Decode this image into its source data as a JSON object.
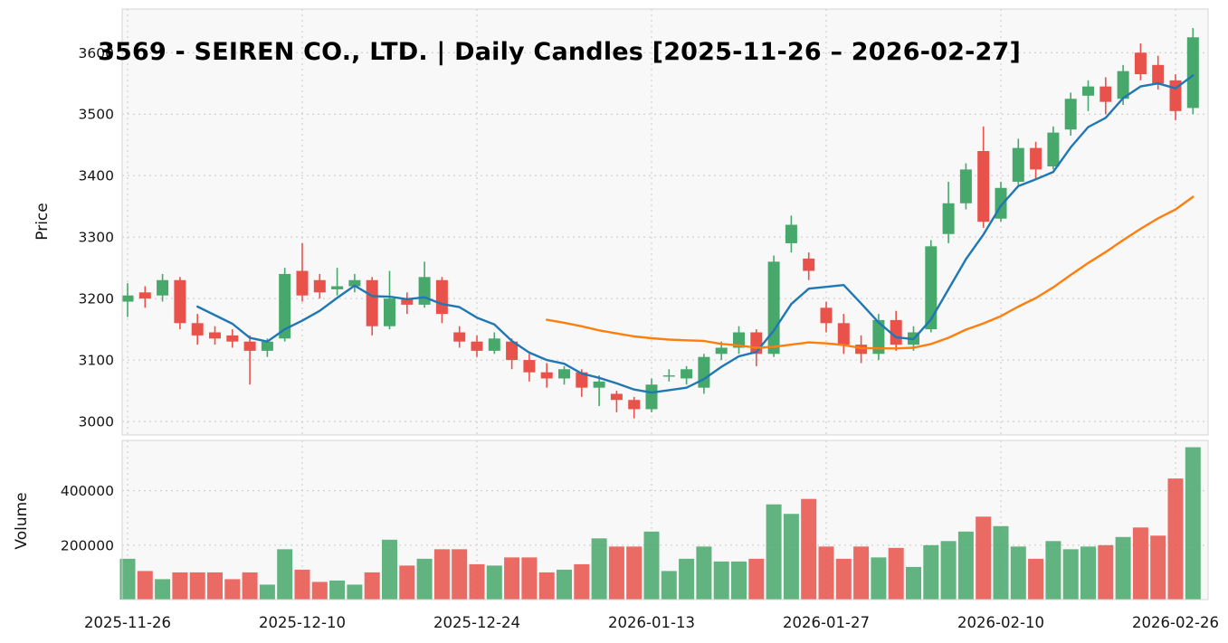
{
  "title": "3569 - SEIREN CO., LTD. | Daily Candles [2025-11-26 – 2026-02-27]",
  "colors": {
    "up": "#47a86b",
    "down": "#e8524b",
    "sma_fast": "#1f77b4",
    "sma_slow": "#ff7f0e",
    "grid": "#c9c9c9",
    "panel_bg": "#f8f8f8",
    "panel_border": "#d4d4d4",
    "text": "#151515"
  },
  "chart_data": {
    "type": "candlestick",
    "title": "3569 - SEIREN CO., LTD. | Daily Candles [2025-11-26 – 2026-02-27]",
    "ylabel": "Price",
    "ylabel_volume": "Volume",
    "grid": true,
    "price_range": [
      2978,
      3671
    ],
    "volume_range": [
      0,
      585000
    ],
    "price_ticks": [
      3000,
      3100,
      3200,
      3300,
      3400,
      3500,
      3600
    ],
    "volume_ticks": [
      200000,
      400000
    ],
    "x_tick_labels": [
      {
        "index": 0,
        "label": "2025-11-26"
      },
      {
        "index": 10,
        "label": "2025-12-10"
      },
      {
        "index": 20,
        "label": "2025-12-24"
      },
      {
        "index": 30,
        "label": "2026-01-13"
      },
      {
        "index": 40,
        "label": "2026-01-27"
      },
      {
        "index": 50,
        "label": "2026-02-10"
      },
      {
        "index": 60,
        "label": "2026-02-26"
      }
    ],
    "moving_averages": [
      {
        "name": "SMA(5)",
        "window": 5,
        "color": "#1f77b4"
      },
      {
        "name": "SMA(25)",
        "window": 25,
        "color": "#ff7f0e"
      }
    ],
    "candles": [
      {
        "date": "2025-11-26",
        "open": 3195,
        "high": 3225,
        "low": 3170,
        "close": 3205,
        "volume": 150000
      },
      {
        "date": "2025-11-27",
        "open": 3210,
        "high": 3220,
        "low": 3185,
        "close": 3200,
        "volume": 105000
      },
      {
        "date": "2025-11-28",
        "open": 3205,
        "high": 3240,
        "low": 3195,
        "close": 3230,
        "volume": 75000
      },
      {
        "date": "2025-12-01",
        "open": 3230,
        "high": 3235,
        "low": 3150,
        "close": 3160,
        "volume": 100000
      },
      {
        "date": "2025-12-02",
        "open": 3160,
        "high": 3175,
        "low": 3125,
        "close": 3140,
        "volume": 100000
      },
      {
        "date": "2025-12-03",
        "open": 3145,
        "high": 3155,
        "low": 3125,
        "close": 3135,
        "volume": 100000
      },
      {
        "date": "2025-12-04",
        "open": 3140,
        "high": 3150,
        "low": 3120,
        "close": 3130,
        "volume": 75000
      },
      {
        "date": "2025-12-05",
        "open": 3130,
        "high": 3140,
        "low": 3060,
        "close": 3115,
        "volume": 100000
      },
      {
        "date": "2025-12-08",
        "open": 3115,
        "high": 3135,
        "low": 3105,
        "close": 3130,
        "volume": 55000
      },
      {
        "date": "2025-12-09",
        "open": 3135,
        "high": 3250,
        "low": 3130,
        "close": 3240,
        "volume": 185000
      },
      {
        "date": "2025-12-10",
        "open": 3245,
        "high": 3290,
        "low": 3195,
        "close": 3205,
        "volume": 110000
      },
      {
        "date": "2025-12-11",
        "open": 3230,
        "high": 3240,
        "low": 3200,
        "close": 3210,
        "volume": 65000
      },
      {
        "date": "2025-12-12",
        "open": 3215,
        "high": 3250,
        "low": 3205,
        "close": 3220,
        "volume": 70000
      },
      {
        "date": "2025-12-15",
        "open": 3220,
        "high": 3240,
        "low": 3210,
        "close": 3230,
        "volume": 55000
      },
      {
        "date": "2025-12-16",
        "open": 3230,
        "high": 3235,
        "low": 3140,
        "close": 3155,
        "volume": 100000
      },
      {
        "date": "2025-12-17",
        "open": 3155,
        "high": 3245,
        "low": 3150,
        "close": 3200,
        "volume": 220000
      },
      {
        "date": "2025-12-18",
        "open": 3200,
        "high": 3210,
        "low": 3175,
        "close": 3190,
        "volume": 125000
      },
      {
        "date": "2025-12-19",
        "open": 3190,
        "high": 3260,
        "low": 3185,
        "close": 3235,
        "volume": 150000
      },
      {
        "date": "2025-12-22",
        "open": 3230,
        "high": 3235,
        "low": 3160,
        "close": 3175,
        "volume": 185000
      },
      {
        "date": "2025-12-23",
        "open": 3145,
        "high": 3155,
        "low": 3120,
        "close": 3130,
        "volume": 185000
      },
      {
        "date": "2025-12-24",
        "open": 3130,
        "high": 3140,
        "low": 3105,
        "close": 3115,
        "volume": 130000
      },
      {
        "date": "2025-12-25",
        "open": 3115,
        "high": 3145,
        "low": 3110,
        "close": 3135,
        "volume": 125000
      },
      {
        "date": "2025-12-26",
        "open": 3130,
        "high": 3135,
        "low": 3085,
        "close": 3100,
        "volume": 155000
      },
      {
        "date": "2025-12-29",
        "open": 3100,
        "high": 3110,
        "low": 3065,
        "close": 3080,
        "volume": 155000
      },
      {
        "date": "2025-12-30",
        "open": 3080,
        "high": 3095,
        "low": 3055,
        "close": 3070,
        "volume": 100000
      },
      {
        "date": "2026-01-05",
        "open": 3070,
        "high": 3090,
        "low": 3060,
        "close": 3085,
        "volume": 110000
      },
      {
        "date": "2026-01-06",
        "open": 3080,
        "high": 3085,
        "low": 3040,
        "close": 3055,
        "volume": 130000
      },
      {
        "date": "2026-01-07",
        "open": 3055,
        "high": 3075,
        "low": 3025,
        "close": 3065,
        "volume": 225000
      },
      {
        "date": "2026-01-08",
        "open": 3045,
        "high": 3050,
        "low": 3015,
        "close": 3035,
        "volume": 195000
      },
      {
        "date": "2026-01-09",
        "open": 3035,
        "high": 3040,
        "low": 3005,
        "close": 3020,
        "volume": 195000
      },
      {
        "date": "2026-01-13",
        "open": 3020,
        "high": 3070,
        "low": 3015,
        "close": 3060,
        "volume": 250000
      },
      {
        "date": "2026-01-14",
        "open": 3075,
        "high": 3085,
        "low": 3065,
        "close": 3075,
        "volume": 105000
      },
      {
        "date": "2026-01-15",
        "open": 3070,
        "high": 3090,
        "low": 3060,
        "close": 3085,
        "volume": 150000
      },
      {
        "date": "2026-01-16",
        "open": 3055,
        "high": 3110,
        "low": 3045,
        "close": 3105,
        "volume": 195000
      },
      {
        "date": "2026-01-19",
        "open": 3110,
        "high": 3130,
        "low": 3100,
        "close": 3120,
        "volume": 140000
      },
      {
        "date": "2026-01-20",
        "open": 3120,
        "high": 3155,
        "low": 3110,
        "close": 3145,
        "volume": 140000
      },
      {
        "date": "2026-01-21",
        "open": 3145,
        "high": 3150,
        "low": 3090,
        "close": 3110,
        "volume": 150000
      },
      {
        "date": "2026-01-22",
        "open": 3110,
        "high": 3270,
        "low": 3105,
        "close": 3260,
        "volume": 350000
      },
      {
        "date": "2026-01-23",
        "open": 3290,
        "high": 3335,
        "low": 3275,
        "close": 3320,
        "volume": 315000
      },
      {
        "date": "2026-01-26",
        "open": 3265,
        "high": 3275,
        "low": 3230,
        "close": 3245,
        "volume": 370000
      },
      {
        "date": "2026-01-27",
        "open": 3185,
        "high": 3195,
        "low": 3145,
        "close": 3160,
        "volume": 195000
      },
      {
        "date": "2026-01-28",
        "open": 3160,
        "high": 3175,
        "low": 3110,
        "close": 3125,
        "volume": 150000
      },
      {
        "date": "2026-01-29",
        "open": 3125,
        "high": 3140,
        "low": 3095,
        "close": 3110,
        "volume": 195000
      },
      {
        "date": "2026-01-30",
        "open": 3110,
        "high": 3175,
        "low": 3100,
        "close": 3165,
        "volume": 155000
      },
      {
        "date": "2026-02-02",
        "open": 3165,
        "high": 3180,
        "low": 3115,
        "close": 3125,
        "volume": 190000
      },
      {
        "date": "2026-02-03",
        "open": 3125,
        "high": 3155,
        "low": 3115,
        "close": 3145,
        "volume": 120000
      },
      {
        "date": "2026-02-04",
        "open": 3150,
        "high": 3295,
        "low": 3145,
        "close": 3285,
        "volume": 200000
      },
      {
        "date": "2026-02-05",
        "open": 3305,
        "high": 3390,
        "low": 3290,
        "close": 3355,
        "volume": 215000
      },
      {
        "date": "2026-02-06",
        "open": 3355,
        "high": 3420,
        "low": 3345,
        "close": 3410,
        "volume": 250000
      },
      {
        "date": "2026-02-09",
        "open": 3440,
        "high": 3480,
        "low": 3315,
        "close": 3325,
        "volume": 305000
      },
      {
        "date": "2026-02-10",
        "open": 3330,
        "high": 3390,
        "low": 3325,
        "close": 3380,
        "volume": 270000
      },
      {
        "date": "2026-02-12",
        "open": 3390,
        "high": 3460,
        "low": 3385,
        "close": 3445,
        "volume": 195000
      },
      {
        "date": "2026-02-13",
        "open": 3445,
        "high": 3455,
        "low": 3395,
        "close": 3410,
        "volume": 150000
      },
      {
        "date": "2026-02-16",
        "open": 3415,
        "high": 3480,
        "low": 3410,
        "close": 3470,
        "volume": 215000
      },
      {
        "date": "2026-02-17",
        "open": 3475,
        "high": 3535,
        "low": 3465,
        "close": 3525,
        "volume": 185000
      },
      {
        "date": "2026-02-18",
        "open": 3530,
        "high": 3555,
        "low": 3505,
        "close": 3545,
        "volume": 195000
      },
      {
        "date": "2026-02-19",
        "open": 3545,
        "high": 3560,
        "low": 3500,
        "close": 3520,
        "volume": 200000
      },
      {
        "date": "2026-02-20",
        "open": 3525,
        "high": 3580,
        "low": 3515,
        "close": 3570,
        "volume": 230000
      },
      {
        "date": "2026-02-24",
        "open": 3600,
        "high": 3615,
        "low": 3555,
        "close": 3565,
        "volume": 265000
      },
      {
        "date": "2026-02-25",
        "open": 3580,
        "high": 3595,
        "low": 3540,
        "close": 3550,
        "volume": 235000
      },
      {
        "date": "2026-02-26",
        "open": 3555,
        "high": 3565,
        "low": 3490,
        "close": 3505,
        "volume": 445000
      },
      {
        "date": "2026-02-27",
        "open": 3510,
        "high": 3640,
        "low": 3500,
        "close": 3625,
        "volume": 560000
      }
    ]
  }
}
